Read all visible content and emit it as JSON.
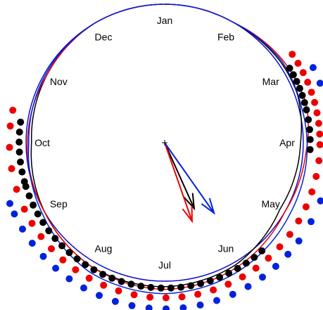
{
  "chart_data": {
    "type": "scatter",
    "subtype": "circular-annual",
    "title": "",
    "months": [
      "Jan",
      "Feb",
      "Mar",
      "Apr",
      "May",
      "Jun",
      "Jul",
      "Aug",
      "Sep",
      "Oct",
      "Nov",
      "Dec"
    ],
    "month_label_color": "#000000",
    "reference_circle": {
      "radius": 1.0,
      "color": "#0000cc"
    },
    "series": [
      {
        "color": "#000000",
        "point_radius": 1.05,
        "day_of_year": [
          60,
          63,
          66,
          69,
          72,
          75,
          78,
          82,
          86,
          90,
          94,
          140,
          144,
          148,
          152,
          156,
          160,
          164,
          168,
          172,
          176,
          180,
          184,
          188,
          192,
          196,
          200,
          204,
          208,
          212,
          216,
          220,
          224,
          228,
          232,
          236,
          240,
          244,
          248,
          252,
          256,
          258,
          262,
          266,
          270,
          274,
          278,
          282
        ],
        "mean_direction_day": 158,
        "mean_resultant_length": 0.52,
        "curve": [
          [
            0,
            1.0
          ],
          [
            30,
            1.0
          ],
          [
            55,
            1.02
          ],
          [
            70,
            1.02
          ],
          [
            90,
            0.98
          ],
          [
            120,
            0.96
          ],
          [
            150,
            1.02
          ],
          [
            180,
            1.04
          ],
          [
            210,
            1.04
          ],
          [
            240,
            1.0
          ],
          [
            270,
            0.96
          ],
          [
            300,
            0.98
          ],
          [
            330,
            1.0
          ],
          [
            360,
            1.0
          ]
        ]
      },
      {
        "color": "#ee0000",
        "point_radius": 1.12,
        "day_of_year": [
          56,
          60,
          64,
          68,
          72,
          76,
          80,
          84,
          88,
          92,
          98,
          104,
          110,
          116,
          122,
          128,
          134,
          140,
          146,
          152,
          158,
          164,
          170,
          176,
          182,
          188,
          194,
          200,
          206,
          212,
          218,
          224,
          230,
          236,
          242,
          248,
          256,
          264,
          272,
          280,
          286
        ],
        "mean_direction_day": 163,
        "mean_resultant_length": 0.6,
        "curve": [
          [
            0,
            1.0
          ],
          [
            30,
            1.0
          ],
          [
            55,
            1.04
          ],
          [
            75,
            1.06
          ],
          [
            95,
            1.02
          ],
          [
            120,
            1.0
          ],
          [
            150,
            1.04
          ],
          [
            180,
            1.06
          ],
          [
            210,
            1.04
          ],
          [
            240,
            1.0
          ],
          [
            270,
            0.99
          ],
          [
            300,
            0.98
          ],
          [
            330,
            1.0
          ],
          [
            360,
            1.0
          ]
        ]
      },
      {
        "color": "#0022dd",
        "point_radius": 1.2,
        "day_of_year": [
          64,
          70,
          104,
          112,
          120,
          128,
          134,
          140,
          146,
          152,
          158,
          164,
          170,
          176,
          182,
          188,
          194,
          200,
          206,
          212,
          218,
          224,
          230,
          236,
          242,
          248,
          252
        ],
        "mean_direction_day": 147,
        "mean_resultant_length": 0.62,
        "curve": [
          [
            0,
            1.0
          ],
          [
            30,
            1.0
          ],
          [
            55,
            1.03
          ],
          [
            75,
            1.02
          ],
          [
            95,
            1.03
          ],
          [
            120,
            1.04
          ],
          [
            150,
            1.07
          ],
          [
            180,
            1.09
          ],
          [
            210,
            1.08
          ],
          [
            240,
            1.02
          ],
          [
            270,
            0.98
          ],
          [
            300,
            0.99
          ],
          [
            330,
            1.0
          ],
          [
            360,
            1.0
          ]
        ]
      }
    ],
    "grid": false,
    "legend": false
  }
}
